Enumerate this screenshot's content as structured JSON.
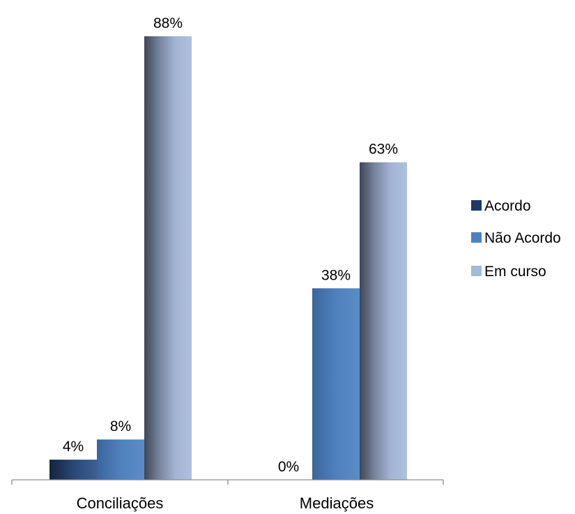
{
  "chart_data": {
    "type": "bar",
    "categories": [
      "Conciliações",
      "Mediações"
    ],
    "series": [
      {
        "name": "Acordo",
        "values": [
          4,
          0
        ],
        "labels": [
          "4%",
          "0%"
        ],
        "color": "#1F3864"
      },
      {
        "name": "Não Acordo",
        "values": [
          8,
          38
        ],
        "labels": [
          "8%",
          "38%"
        ],
        "color": "#4F81BD"
      },
      {
        "name": "Em curso",
        "values": [
          88,
          63
        ],
        "labels": [
          "88%",
          "63%"
        ],
        "color": "#A7B9DA"
      }
    ],
    "value_unit": "%",
    "ylim": [
      0,
      88
    ],
    "grid": false,
    "y_axis_visible": false,
    "legend": "right"
  }
}
